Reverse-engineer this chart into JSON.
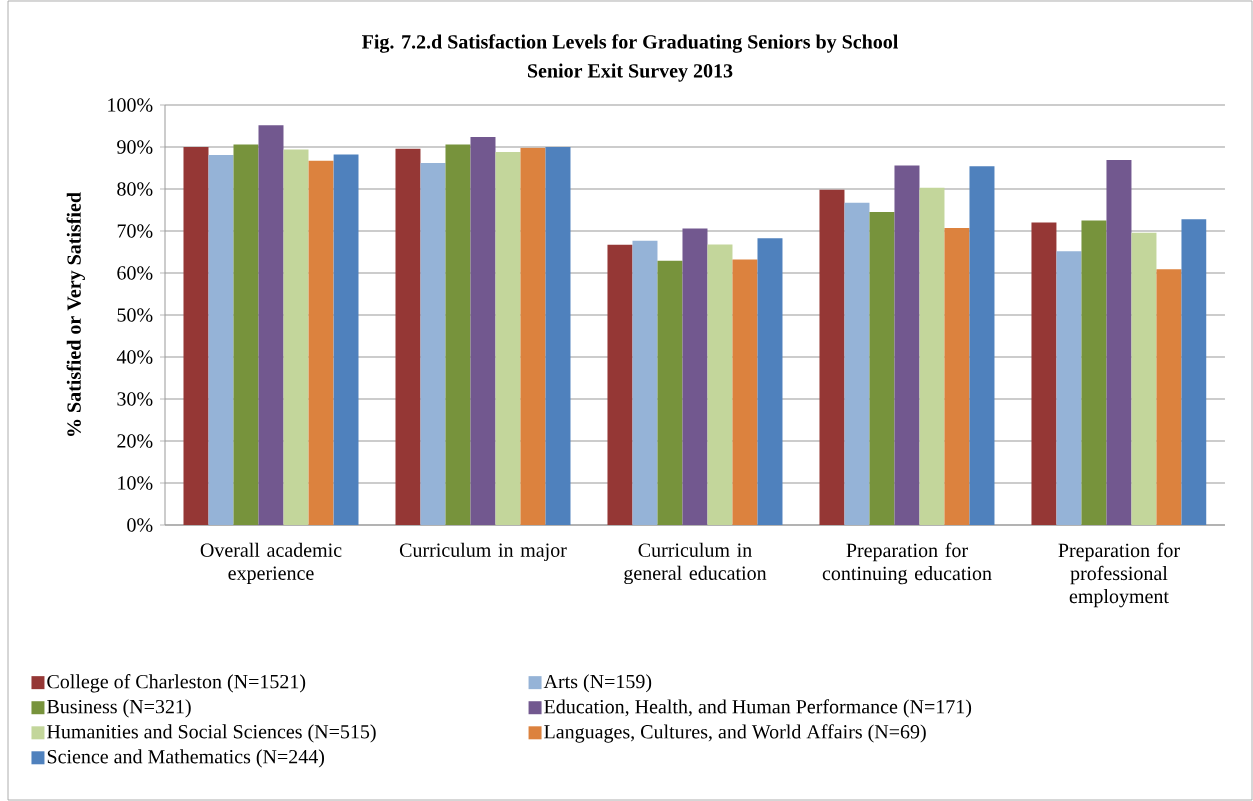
{
  "chart_data": {
    "type": "bar",
    "title": "Fig. 7.2.d Satisfaction Levels for Graduating Seniors by School",
    "subtitle": "Senior Exit Survey 2013",
    "ylabel": "% Satisfied or Very Satisfied",
    "categories": [
      "Overall academic experience",
      "Curriculum in major",
      "Curriculum in general education",
      "Preparation for continuing education",
      "Preparation for professional employment"
    ],
    "series": [
      {
        "name": "College of Charleston (N=1521)",
        "color": "#953735",
        "values": [
          90.0,
          89.6,
          66.7,
          79.8,
          72.0
        ]
      },
      {
        "name": "Arts (N=159)",
        "color": "#95b3d7",
        "values": [
          88.1,
          86.2,
          67.7,
          76.7,
          65.2
        ]
      },
      {
        "name": "Business (N=321)",
        "color": "#77933c",
        "values": [
          90.6,
          90.6,
          62.9,
          74.5,
          72.5
        ]
      },
      {
        "name": "Education, Health, and Human Performance (N=171)",
        "color": "#72588f",
        "values": [
          95.2,
          92.4,
          70.6,
          85.6,
          86.9
        ]
      },
      {
        "name": "Humanities and Social Sciences (N=515)",
        "color": "#c3d69b",
        "values": [
          89.4,
          88.8,
          66.8,
          80.3,
          69.6
        ]
      },
      {
        "name": "Languages, Cultures, and World Affairs (N=69)",
        "color": "#dc823e",
        "values": [
          86.7,
          89.8,
          63.2,
          70.7,
          60.9
        ]
      },
      {
        "name": "Science and Mathematics (N=244)",
        "color": "#4f81bd",
        "values": [
          88.2,
          90.0,
          68.3,
          85.4,
          72.8
        ]
      }
    ],
    "ylim": [
      0,
      100
    ],
    "yticks": [
      {
        "value": 0,
        "label": "0%"
      },
      {
        "value": 10,
        "label": "10%"
      },
      {
        "value": 20,
        "label": "20%"
      },
      {
        "value": 30,
        "label": "30%"
      },
      {
        "value": 40,
        "label": "40%"
      },
      {
        "value": 50,
        "label": "50%"
      },
      {
        "value": 60,
        "label": "60%"
      },
      {
        "value": 70,
        "label": "70%"
      },
      {
        "value": 80,
        "label": "80%"
      },
      {
        "value": 90,
        "label": "90%"
      },
      {
        "value": 100,
        "label": "100%"
      }
    ],
    "grid": "y",
    "legend": "bottom"
  }
}
